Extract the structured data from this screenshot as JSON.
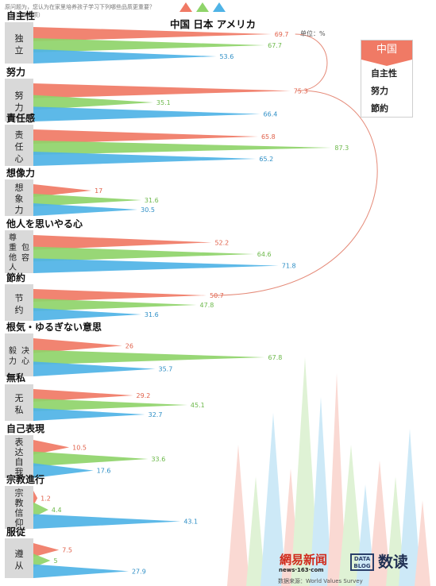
{
  "header": {
    "line1": "原问题为，您认为在家里培养孩子学习下列哪些品质更重要？",
    "line2": "（请选择五项）"
  },
  "legend": {
    "countries": [
      "中国",
      "日本",
      "アメリカ"
    ]
  },
  "legend_box": {
    "title": "中国",
    "items": [
      "自主性",
      "努力",
      "節約"
    ]
  },
  "unit_note": "单位：%",
  "footer": {
    "logo_netease": "網易新闻",
    "logo_netease_sub": "news·163·com",
    "logo_datablog": "DATA BLOG",
    "logo_shudu": "数读",
    "source": "数据来源：World Values Survey"
  },
  "colors": {
    "china": "#f07a65",
    "japan": "#8fd46a",
    "usa": "#4fb3e6",
    "label_bg": "#d9d9d9",
    "connector": "#e58a78"
  },
  "chart_data": {
    "type": "bar",
    "orientation": "horizontal",
    "value_unit": "%",
    "series": [
      {
        "name": "中国",
        "values": [
          69.7,
          75.3,
          65.8,
          17,
          52.2,
          50.7,
          26,
          29.2,
          10.5,
          1.2,
          7.5
        ]
      },
      {
        "name": "日本",
        "values": [
          67.7,
          35.1,
          87.3,
          31.6,
          64.6,
          47.8,
          67.8,
          45.1,
          33.6,
          4.4,
          5
        ]
      },
      {
        "name": "アメリカ",
        "values": [
          53.6,
          66.4,
          65.2,
          30.5,
          71.8,
          31.6,
          35.7,
          32.7,
          17.6,
          43.1,
          27.9
        ]
      }
    ],
    "categories": [
      {
        "ja": "自主性",
        "zh": [
          "独",
          "立"
        ]
      },
      {
        "ja": "努力",
        "zh": [
          "努",
          "力"
        ]
      },
      {
        "ja": "責任感",
        "zh": [
          "责",
          "任",
          "心"
        ]
      },
      {
        "ja": "想像力",
        "zh": [
          "想",
          "象",
          "力"
        ]
      },
      {
        "ja": "他人を思いやる心",
        "zh": [
          "尊重他人",
          "包容"
        ]
      },
      {
        "ja": "節約",
        "zh": [
          "节",
          "约"
        ]
      },
      {
        "ja": "根気・ゆるぎない意思",
        "zh": [
          "毅力",
          "决心"
        ]
      },
      {
        "ja": "無私",
        "zh": [
          "无",
          "私"
        ]
      },
      {
        "ja": "自己表現",
        "zh": [
          "表",
          "达",
          "自",
          "我"
        ]
      },
      {
        "ja": "宗教進行",
        "zh": [
          "宗",
          "教",
          "信",
          "仰"
        ]
      },
      {
        "ja": "服従",
        "zh": [
          "遵",
          "从"
        ]
      }
    ]
  }
}
